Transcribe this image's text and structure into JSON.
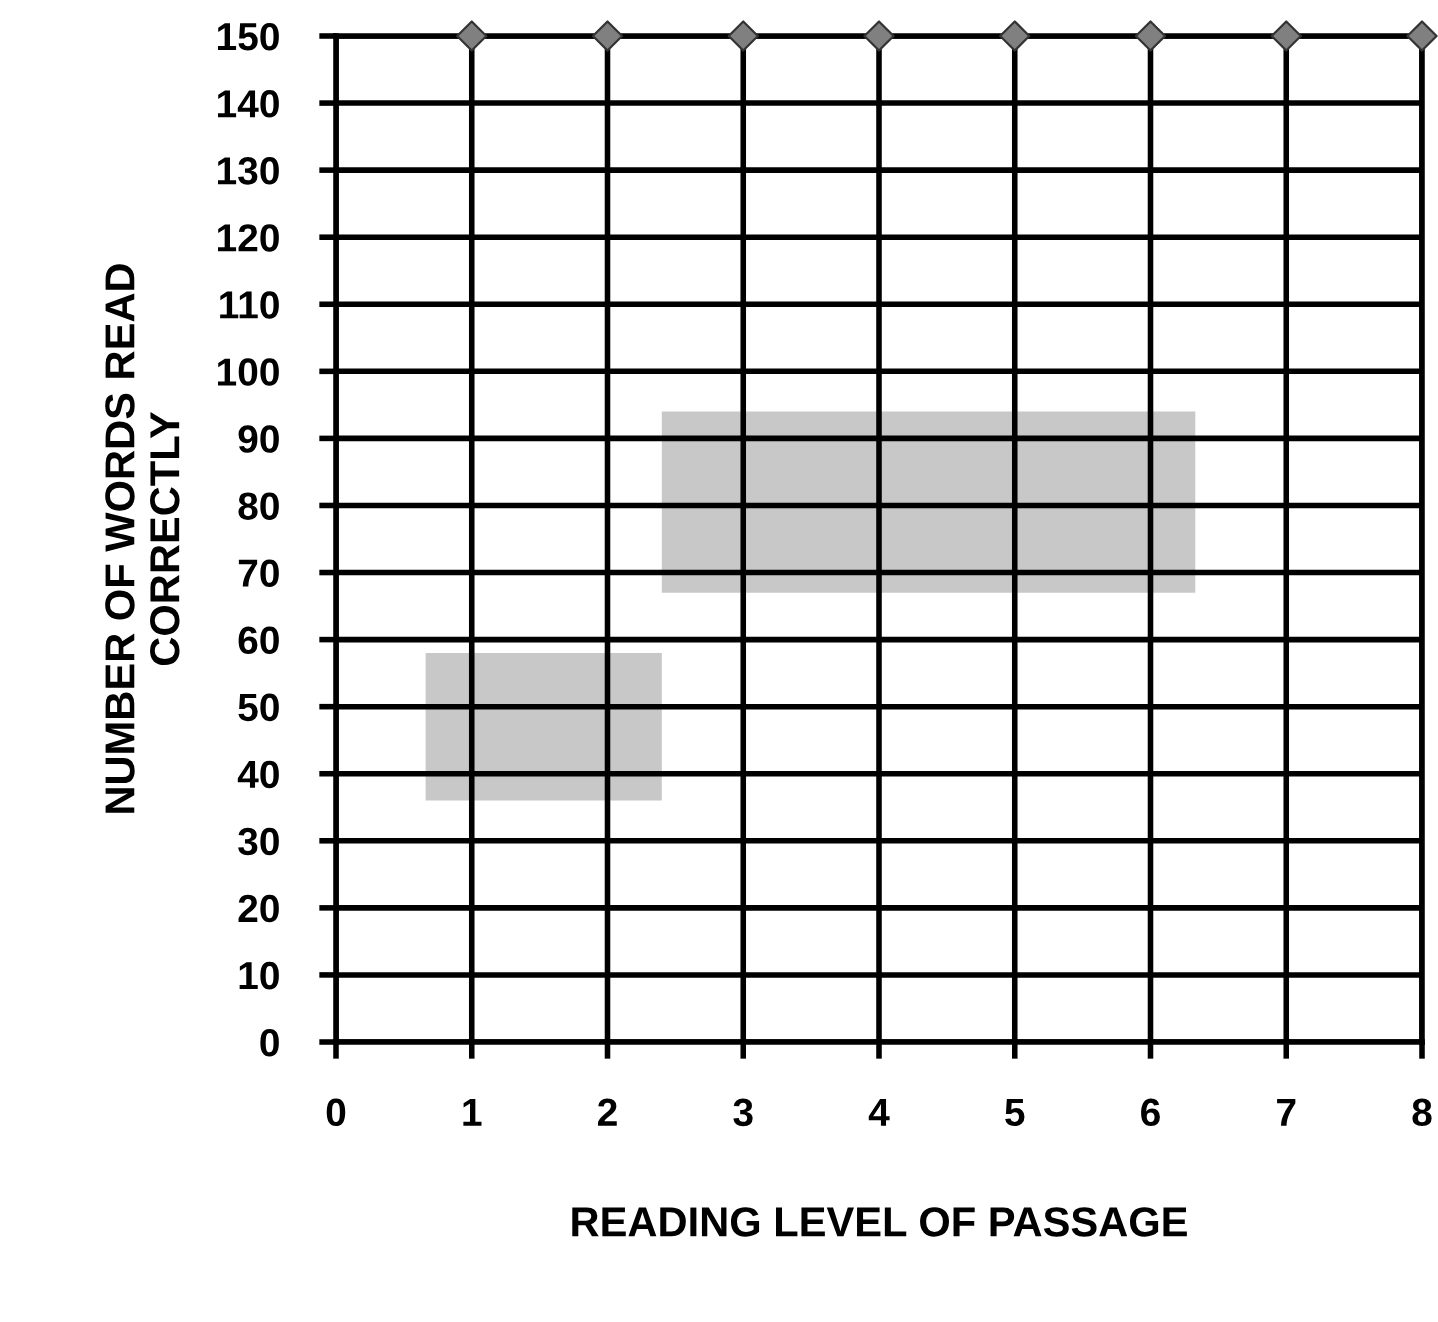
{
  "chart_data": {
    "type": "area",
    "xlabel": "READING LEVEL OF PASSAGE",
    "ylabel": "NUMBER OF WORDS READ\nCORRECTLY",
    "xlim": [
      0,
      8
    ],
    "xticks": [
      0,
      1,
      2,
      3,
      4,
      5,
      6,
      7,
      8
    ],
    "ylim": [
      0,
      150
    ],
    "yticks": [
      0,
      10,
      20,
      30,
      40,
      50,
      60,
      70,
      80,
      90,
      100,
      110,
      120,
      130,
      140,
      150
    ],
    "grid": true,
    "series": [
      {
        "color": "#c8c8c8",
        "x": [
          0.66,
          0.66,
          2.4,
          2.4
        ],
        "values": [
          36,
          58,
          58,
          36
        ]
      },
      {
        "color": "#c8c8c8",
        "x": [
          2.4,
          2.4,
          6.33,
          6.33
        ],
        "values": [
          67,
          94,
          94,
          67
        ]
      },
      {
        "type": "scatter",
        "color": "#808080",
        "marker": "diamond",
        "x": [
          1,
          2,
          3,
          4,
          5,
          6,
          7,
          8
        ],
        "values": [
          150,
          150,
          150,
          150,
          150,
          150,
          150,
          150
        ]
      }
    ]
  }
}
